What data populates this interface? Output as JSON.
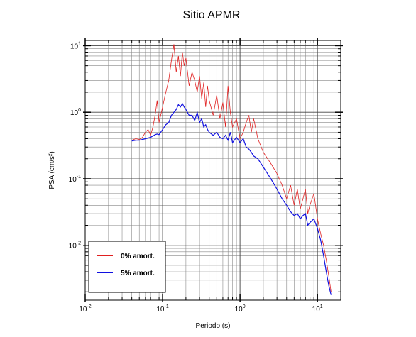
{
  "chart_data": {
    "type": "line",
    "title": "Sitio APMR",
    "xlabel": "Periodo (s)",
    "ylabel": "PSA (cm/s²)",
    "xscale": "log",
    "yscale": "log",
    "grid": true,
    "minor_grid": true,
    "legend": "lower left",
    "xlim": [
      0.01,
      20
    ],
    "ylim": [
      0.0015,
      12
    ],
    "xticks": [
      {
        "value": 0.01,
        "label": "10",
        "exponent": "-2"
      },
      {
        "value": 0.1,
        "label": "10",
        "exponent": "-1"
      },
      {
        "value": 1,
        "label": "10",
        "exponent": "0"
      },
      {
        "value": 10,
        "label": "10",
        "exponent": "1"
      }
    ],
    "yticks": [
      {
        "value": 0.01,
        "label": "10",
        "exponent": "-2"
      },
      {
        "value": 0.1,
        "label": "10",
        "exponent": "-1"
      },
      {
        "value": 1,
        "label": "10",
        "exponent": "0"
      },
      {
        "value": 10,
        "label": "10",
        "exponent": "1"
      }
    ],
    "x": [
      0.04,
      0.045,
      0.05,
      0.055,
      0.06,
      0.065,
      0.07,
      0.075,
      0.08,
      0.085,
      0.09,
      0.1,
      0.11,
      0.12,
      0.13,
      0.14,
      0.15,
      0.16,
      0.17,
      0.18,
      0.19,
      0.2,
      0.22,
      0.24,
      0.26,
      0.28,
      0.3,
      0.32,
      0.34,
      0.36,
      0.38,
      0.4,
      0.45,
      0.5,
      0.55,
      0.6,
      0.65,
      0.7,
      0.75,
      0.8,
      0.9,
      1.0,
      1.1,
      1.2,
      1.3,
      1.4,
      1.5,
      1.7,
      2.0,
      2.5,
      3,
      3.5,
      4,
      4.5,
      5,
      5.5,
      6,
      6.5,
      7,
      7.5,
      8,
      9,
      10,
      11,
      12,
      13,
      14,
      15
    ],
    "series": [
      {
        "name": "0% amort.",
        "color": "#e02020",
        "values": [
          0.38,
          0.4,
          0.39,
          0.42,
          0.5,
          0.55,
          0.45,
          0.6,
          0.9,
          1.5,
          0.7,
          1.2,
          2.0,
          3.0,
          6.0,
          10.5,
          4.0,
          7.0,
          3.5,
          8.0,
          5.0,
          6.5,
          2.5,
          4.0,
          3.0,
          2.0,
          3.5,
          1.6,
          2.8,
          1.2,
          2.5,
          1.5,
          0.9,
          1.8,
          0.8,
          1.4,
          0.6,
          2.5,
          1.0,
          0.6,
          0.8,
          0.4,
          0.5,
          0.7,
          0.9,
          0.5,
          0.8,
          0.4,
          0.25,
          0.17,
          0.12,
          0.08,
          0.05,
          0.08,
          0.04,
          0.07,
          0.035,
          0.05,
          0.07,
          0.03,
          0.04,
          0.06,
          0.025,
          0.015,
          0.01,
          0.006,
          0.0035,
          0.002
        ]
      },
      {
        "name": "5% amort.",
        "color": "#1010e0",
        "values": [
          0.37,
          0.38,
          0.38,
          0.39,
          0.4,
          0.41,
          0.42,
          0.44,
          0.46,
          0.47,
          0.46,
          0.55,
          0.65,
          0.7,
          0.9,
          1.0,
          1.1,
          1.3,
          1.2,
          1.35,
          1.2,
          1.1,
          0.9,
          0.9,
          0.75,
          1.0,
          0.7,
          0.8,
          0.6,
          0.65,
          0.55,
          0.5,
          0.45,
          0.5,
          0.42,
          0.4,
          0.45,
          0.38,
          0.5,
          0.35,
          0.42,
          0.35,
          0.4,
          0.3,
          0.28,
          0.25,
          0.22,
          0.2,
          0.15,
          0.1,
          0.07,
          0.05,
          0.04,
          0.032,
          0.028,
          0.03,
          0.025,
          0.028,
          0.03,
          0.02,
          0.022,
          0.025,
          0.018,
          0.012,
          0.007,
          0.004,
          0.0025,
          0.0018
        ]
      }
    ]
  }
}
